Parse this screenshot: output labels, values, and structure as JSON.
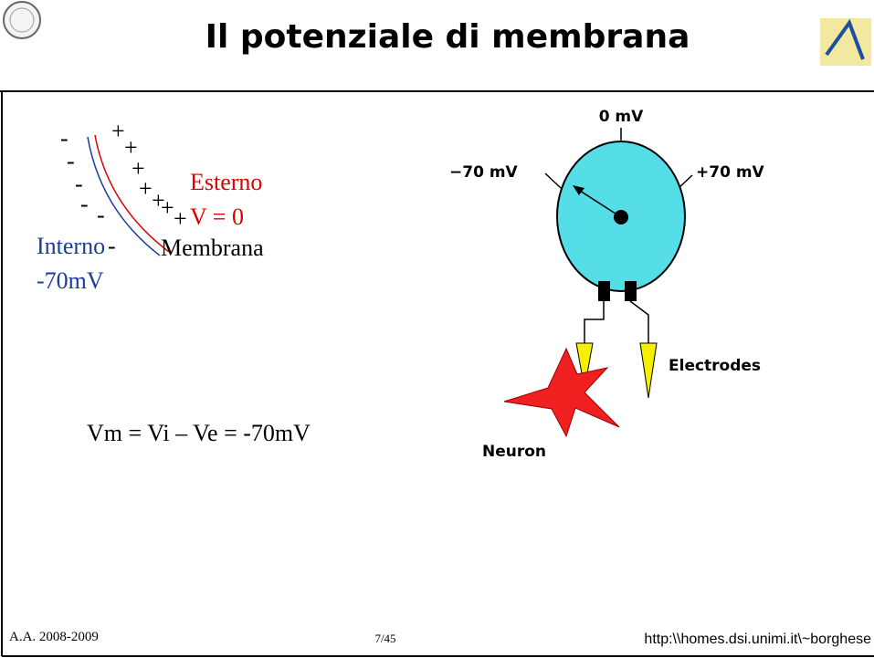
{
  "header": {
    "title": "Il potenziale di membrana"
  },
  "membrane": {
    "outside_label": "Esterno",
    "outside_value": "V = 0",
    "inside_label": "Interno",
    "inside_value": "-70mV",
    "membrane_label": "Membrana",
    "minus": "-",
    "plus": "+"
  },
  "equation": "Vm = Vi – Ve = -70mV",
  "meter": {
    "zero": "0 mV",
    "negative": "−70 mV",
    "positive": "+70 mV",
    "electrodes": "Electrodes",
    "neuron": "Neuron"
  },
  "footer": {
    "year": "A.A. 2008-2009",
    "page": "7/45",
    "url": "http:\\\\homes.dsi.unimi.it\\~borghese"
  }
}
